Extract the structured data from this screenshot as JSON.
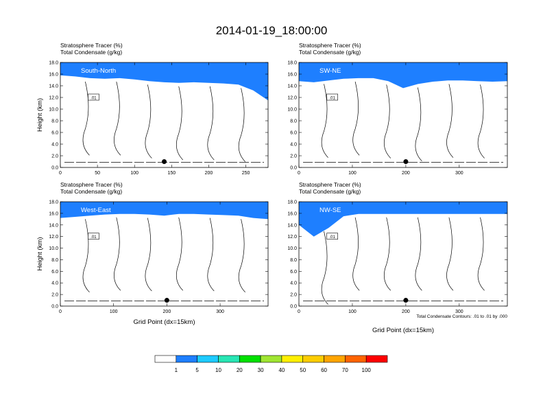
{
  "figure_title": "2014-01-19_18:00:00",
  "footnote": "Total Condensate Contours: .01 to .01 by .000",
  "colorbar": {
    "colors": [
      "#ffffff",
      "#1e7fff",
      "#1ecbff",
      "#28e6b4",
      "#00e100",
      "#a0e632",
      "#fff000",
      "#fccd00",
      "#ffa500",
      "#ff6400",
      "#ff0000"
    ],
    "labels": [
      "1",
      "5",
      "10",
      "20",
      "30",
      "40",
      "50",
      "60",
      "70",
      "100"
    ]
  },
  "chart_data": [
    {
      "type": "contour",
      "title_lines": [
        "Stratosphere Tracer   (%)",
        "Total Condensate   (g/kg)"
      ],
      "section": "South-North",
      "ylabel": "Height (km)",
      "xlabel": "",
      "ylim": [
        0,
        18
      ],
      "yticks": [
        "0.0",
        "2.0",
        "4.0",
        "6.0",
        "8.0",
        "10.0",
        "12.0",
        "14.0",
        "16.0",
        "18.0"
      ],
      "xlim": [
        0,
        280
      ],
      "xticks": [
        0,
        50,
        100,
        150,
        200,
        250
      ],
      "tropopause_km": [
        15.8,
        15.6,
        15.3,
        15.2,
        15.3,
        15.1,
        14.8,
        14.6,
        14.5,
        14.6,
        14.5,
        14.4,
        14.2,
        13.2,
        11.5
      ],
      "contour_label": ".01",
      "marker": {
        "x": 140,
        "y": 1.0
      }
    },
    {
      "type": "contour",
      "title_lines": [
        "Stratosphere Tracer   (%)",
        "Total Condensate   (g/kg)"
      ],
      "section": "SW-NE",
      "ylabel": "",
      "xlabel": "",
      "ylim": [
        0,
        18
      ],
      "yticks": [
        "0.0",
        "2.0",
        "4.0",
        "6.0",
        "8.0",
        "10.0",
        "12.0",
        "14.0",
        "16.0",
        "18.0"
      ],
      "xlim": [
        0,
        390
      ],
      "xticks": [
        0,
        100,
        200,
        300
      ],
      "tropopause_km": [
        14.8,
        14.6,
        14.9,
        15.2,
        15.3,
        15.3,
        14.8,
        13.6,
        14.3,
        14.7,
        14.9,
        14.9,
        14.8,
        14.7,
        14.8
      ],
      "contour_label": ".01",
      "marker": {
        "x": 200,
        "y": 1.0
      }
    },
    {
      "type": "contour",
      "title_lines": [
        "Stratosphere Tracer   (%)",
        "Total Condensate   (g/kg)"
      ],
      "section": "West-East",
      "ylabel": "Height (km)",
      "xlabel": "Grid Point (dx=15km)",
      "ylim": [
        0,
        18
      ],
      "yticks": [
        "0.0",
        "2.0",
        "4.0",
        "6.0",
        "8.0",
        "10.0",
        "12.0",
        "14.0",
        "16.0",
        "18.0"
      ],
      "xlim": [
        0,
        390
      ],
      "xticks": [
        0,
        100,
        200,
        300
      ],
      "tropopause_km": [
        15.2,
        15.4,
        15.6,
        15.8,
        15.9,
        15.9,
        15.8,
        15.6,
        15.9,
        15.9,
        15.8,
        15.7,
        15.6,
        15.2,
        15.0
      ],
      "contour_label": ".01",
      "marker": {
        "x": 200,
        "y": 1.0
      }
    },
    {
      "type": "contour",
      "title_lines": [
        "Stratosphere Tracer   (%)",
        "Total Condensate   (g/kg)"
      ],
      "section": "NW-SE",
      "ylabel": "",
      "xlabel": "Grid Point (dx=15km)",
      "ylim": [
        0,
        18
      ],
      "yticks": [
        "0.0",
        "2.0",
        "4.0",
        "6.0",
        "8.0",
        "10.0",
        "12.0",
        "14.0",
        "16.0",
        "18.0"
      ],
      "xlim": [
        0,
        390
      ],
      "xticks": [
        0,
        100,
        200,
        300
      ],
      "tropopause_km": [
        14.0,
        12.0,
        13.5,
        15.5,
        15.9,
        15.9,
        15.9,
        15.9,
        15.9,
        15.9,
        15.9,
        15.9,
        15.9,
        15.9,
        15.9
      ],
      "contour_label": ".01",
      "marker": {
        "x": 200,
        "y": 1.0
      }
    }
  ]
}
